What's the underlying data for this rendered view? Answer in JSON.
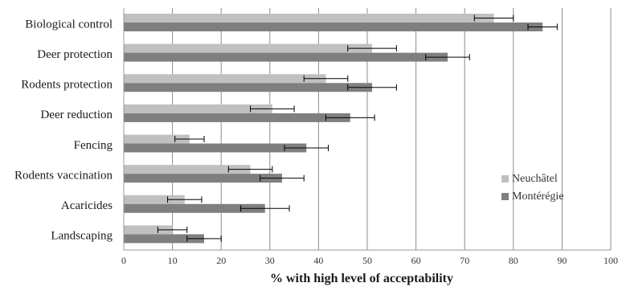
{
  "chart_data": {
    "type": "bar",
    "orientation": "horizontal",
    "categories": [
      "Biological control",
      "Deer protection",
      "Rodents protection",
      "Deer reduction",
      "Fencing",
      "Rodents vaccination",
      "Acaricides",
      "Landscaping"
    ],
    "series": [
      {
        "name": "Neuchâtel",
        "color": "#c0c0c0",
        "values": [
          76,
          51,
          41.5,
          30.5,
          13.5,
          26,
          12.5,
          10
        ],
        "error": [
          4,
          5,
          4.5,
          4.5,
          3,
          4.5,
          3.5,
          3
        ]
      },
      {
        "name": "Montérégie",
        "color": "#7f7f7f",
        "values": [
          86,
          66.5,
          51,
          46.5,
          37.5,
          32.5,
          29,
          16.5
        ],
        "error": [
          3,
          4.5,
          5,
          5,
          4.5,
          4.5,
          5,
          3.5
        ]
      }
    ],
    "xlabel": "% with high level of acceptability",
    "ylabel": "",
    "xlim": [
      0,
      100
    ],
    "xticks": [
      "0",
      "10",
      "20",
      "30",
      "40",
      "50",
      "60",
      "70",
      "80",
      "90",
      "100"
    ],
    "grid": "vertical",
    "legend_position": "right"
  }
}
